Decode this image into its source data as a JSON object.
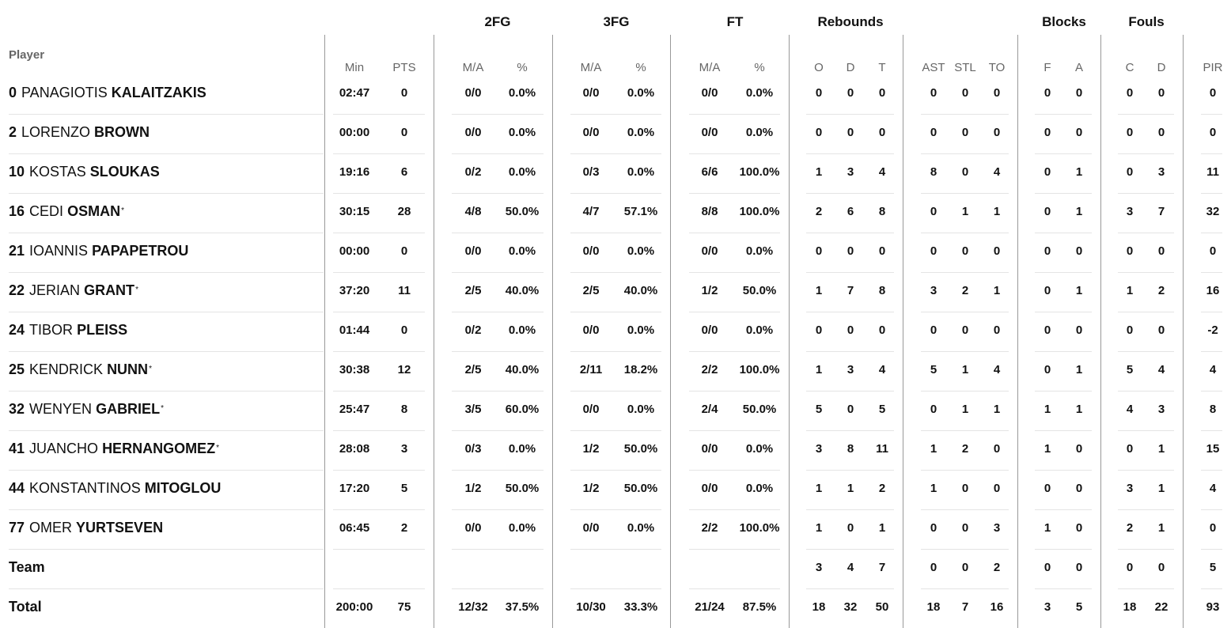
{
  "headers": {
    "player": "Player",
    "groups": [
      "2FG",
      "3FG",
      "FT",
      "Rebounds",
      "Blocks",
      "Fouls"
    ],
    "columns": [
      "Min",
      "PTS",
      "M/A",
      "%",
      "M/A",
      "%",
      "M/A",
      "%",
      "O",
      "D",
      "T",
      "AST",
      "STL",
      "TO",
      "F",
      "A",
      "C",
      "D",
      "PIR"
    ]
  },
  "players": [
    {
      "num": "0",
      "first": "PANAGIOTIS",
      "last": "KALAITZAKIS",
      "star": "",
      "stats": [
        "02:47",
        "0",
        "0/0",
        "0.0%",
        "0/0",
        "0.0%",
        "0/0",
        "0.0%",
        "0",
        "0",
        "0",
        "0",
        "0",
        "0",
        "0",
        "0",
        "0",
        "0",
        "0"
      ]
    },
    {
      "num": "2",
      "first": "LORENZO",
      "last": "BROWN",
      "star": "",
      "stats": [
        "00:00",
        "0",
        "0/0",
        "0.0%",
        "0/0",
        "0.0%",
        "0/0",
        "0.0%",
        "0",
        "0",
        "0",
        "0",
        "0",
        "0",
        "0",
        "0",
        "0",
        "0",
        "0"
      ]
    },
    {
      "num": "10",
      "first": "KOSTAS",
      "last": "SLOUKAS",
      "star": "",
      "stats": [
        "19:16",
        "6",
        "0/2",
        "0.0%",
        "0/3",
        "0.0%",
        "6/6",
        "100.0%",
        "1",
        "3",
        "4",
        "8",
        "0",
        "4",
        "0",
        "1",
        "0",
        "3",
        "11"
      ]
    },
    {
      "num": "16",
      "first": "CEDI",
      "last": "OSMAN",
      "star": "*",
      "stats": [
        "30:15",
        "28",
        "4/8",
        "50.0%",
        "4/7",
        "57.1%",
        "8/8",
        "100.0%",
        "2",
        "6",
        "8",
        "0",
        "1",
        "1",
        "0",
        "1",
        "3",
        "7",
        "32"
      ]
    },
    {
      "num": "21",
      "first": "IOANNIS",
      "last": "PAPAPETROU",
      "star": "",
      "stats": [
        "00:00",
        "0",
        "0/0",
        "0.0%",
        "0/0",
        "0.0%",
        "0/0",
        "0.0%",
        "0",
        "0",
        "0",
        "0",
        "0",
        "0",
        "0",
        "0",
        "0",
        "0",
        "0"
      ]
    },
    {
      "num": "22",
      "first": "JERIAN",
      "last": "GRANT",
      "star": "*",
      "stats": [
        "37:20",
        "11",
        "2/5",
        "40.0%",
        "2/5",
        "40.0%",
        "1/2",
        "50.0%",
        "1",
        "7",
        "8",
        "3",
        "2",
        "1",
        "0",
        "1",
        "1",
        "2",
        "16"
      ]
    },
    {
      "num": "24",
      "first": "TIBOR",
      "last": "PLEISS",
      "star": "",
      "stats": [
        "01:44",
        "0",
        "0/2",
        "0.0%",
        "0/0",
        "0.0%",
        "0/0",
        "0.0%",
        "0",
        "0",
        "0",
        "0",
        "0",
        "0",
        "0",
        "0",
        "0",
        "0",
        "-2"
      ]
    },
    {
      "num": "25",
      "first": "KENDRICK",
      "last": "NUNN",
      "star": "*",
      "stats": [
        "30:38",
        "12",
        "2/5",
        "40.0%",
        "2/11",
        "18.2%",
        "2/2",
        "100.0%",
        "1",
        "3",
        "4",
        "5",
        "1",
        "4",
        "0",
        "1",
        "5",
        "4",
        "4"
      ]
    },
    {
      "num": "32",
      "first": "WENYEN",
      "last": "GABRIEL",
      "star": "*",
      "stats": [
        "25:47",
        "8",
        "3/5",
        "60.0%",
        "0/0",
        "0.0%",
        "2/4",
        "50.0%",
        "5",
        "0",
        "5",
        "0",
        "1",
        "1",
        "1",
        "1",
        "4",
        "3",
        "8"
      ]
    },
    {
      "num": "41",
      "first": "JUANCHO",
      "last": "HERNANGOMEZ",
      "star": "*",
      "stats": [
        "28:08",
        "3",
        "0/3",
        "0.0%",
        "1/2",
        "50.0%",
        "0/0",
        "0.0%",
        "3",
        "8",
        "11",
        "1",
        "2",
        "0",
        "1",
        "0",
        "0",
        "1",
        "15"
      ]
    },
    {
      "num": "44",
      "first": "KONSTANTINOS",
      "last": "MITOGLOU",
      "star": "",
      "stats": [
        "17:20",
        "5",
        "1/2",
        "50.0%",
        "1/2",
        "50.0%",
        "0/0",
        "0.0%",
        "1",
        "1",
        "2",
        "1",
        "0",
        "0",
        "0",
        "0",
        "3",
        "1",
        "4"
      ]
    },
    {
      "num": "77",
      "first": "OMER",
      "last": "YURTSEVEN",
      "star": "",
      "stats": [
        "06:45",
        "2",
        "0/0",
        "0.0%",
        "0/0",
        "0.0%",
        "2/2",
        "100.0%",
        "1",
        "0",
        "1",
        "0",
        "0",
        "3",
        "1",
        "0",
        "2",
        "1",
        "0"
      ]
    }
  ],
  "team_row": {
    "label": "Team",
    "stats": [
      "",
      "",
      "",
      "",
      "",
      "",
      "",
      "",
      "3",
      "4",
      "7",
      "0",
      "0",
      "2",
      "0",
      "0",
      "0",
      "0",
      "5"
    ]
  },
  "total_row": {
    "label": "Total",
    "stats": [
      "200:00",
      "75",
      "12/32",
      "37.5%",
      "10/30",
      "33.3%",
      "21/24",
      "87.5%",
      "18",
      "32",
      "50",
      "18",
      "7",
      "16",
      "3",
      "5",
      "18",
      "22",
      "93"
    ]
  }
}
